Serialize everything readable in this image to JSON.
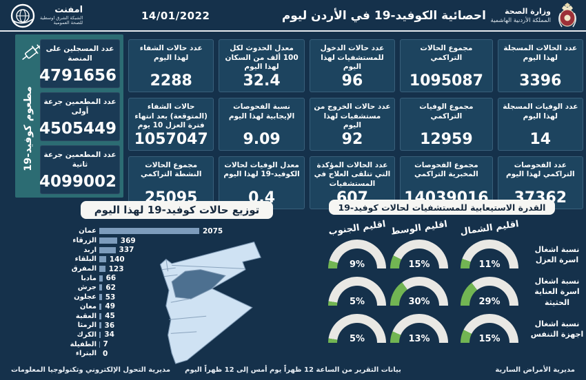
{
  "colors": {
    "bg": "#15314b",
    "card": "#1d445f",
    "vcard": "#1a3a55",
    "teal": "#2c6c73",
    "bar": "#7d9cbc",
    "gauge_track": "#e9e8e4",
    "gauge_fill": "#72b553",
    "map_fill": "#cfe2f3",
    "map_highlight": "#4d7090"
  },
  "header": {
    "title": "احصائية الكوفيد-19 في الأردن ليوم",
    "date": "14/01/2022",
    "moh_name": "وزارة الصحة",
    "moh_sub": "المملكة الأردنية الهاشمية",
    "emphnet_name": "امفنت",
    "emphnet_sub1": "الشبكة الشرق اوسطية",
    "emphnet_sub2": "للصحة العمومية"
  },
  "icons": {
    "syringe-icon": "syringe",
    "emphnet-logo": "globe",
    "moh-emblem": "royal crown crest"
  },
  "vaccine": {
    "strip_label": "مطعوم كوفيد-19",
    "cards": [
      {
        "label": "عدد المسجلين على المنصة",
        "value": "4791656"
      },
      {
        "label": "عدد المطعمين جرعة أولى",
        "value": "4505449"
      },
      {
        "label": "عدد المطعمين جرعة ثانية",
        "value": "4099002"
      }
    ]
  },
  "stats": {
    "cards": [
      {
        "label": "عدد الحالات المسجلة لهذا اليوم",
        "value": "3396"
      },
      {
        "label": "مجموع الحالات التراكمي",
        "value": "1095087"
      },
      {
        "label": "عدد حالات الدخول للمستشفيات لهذا اليوم",
        "value": "96"
      },
      {
        "label": "معدل الحدوث لكل 100 ألف من السكان لهذا اليوم",
        "value": "32.4"
      },
      {
        "label": "عدد حالات الشفاء لهذا اليوم",
        "value": "2288"
      },
      {
        "label": "عدد الوفيات المسجلة لهذا اليوم",
        "value": "14"
      },
      {
        "label": "مجموع الوفيات التراكمي",
        "value": "12959"
      },
      {
        "label": "عدد حالات الخروج من مستشفيات لهذا اليوم",
        "value": "92"
      },
      {
        "label": "نسبة الفحوصات الإيجابية لهذا اليوم",
        "value": "9.09"
      },
      {
        "label": "حالات الشفاء (المتوقعة) بعد انتهاء فترة العزل 10 يوم",
        "value": "1057047"
      },
      {
        "label": "عدد الفحوصات التراكمي لهذا اليوم",
        "value": "37362"
      },
      {
        "label": "مجموع الفحوصات المخبرية التراكمي",
        "value": "14039016"
      },
      {
        "label": "عدد الحالات المؤكدة التي تتلقى العلاج في المستشفيات",
        "value": "607"
      },
      {
        "label": "معدل الوفيات لحالات الكوفيد-19 لهذا اليوم",
        "value": "0.4"
      },
      {
        "label": "مجموع الحالات النشطة التراكمي",
        "value": "25095"
      }
    ]
  },
  "capacity": {
    "title": "القدرة الاستيعابية للمستشفيات لحالات كوفيد-19",
    "headers": [
      {
        "label": "اقليم الجنوب"
      },
      {
        "label": "اقليم الوسط"
      },
      {
        "label": "اقليم الشمال"
      }
    ],
    "rows": [
      {
        "label": "نسبة اشغال اسرة العزل",
        "south": 9,
        "center": 15,
        "north": 11
      },
      {
        "label": "نسبة اشغال اسرة العناية الحثيثة",
        "south": 5,
        "center": 30,
        "north": 29
      },
      {
        "label": "نسبة اشغال اجهزة التنفس",
        "south": 5,
        "center": 13,
        "north": 15
      }
    ]
  },
  "footer": {
    "right": "مديرية الأمراض السارية",
    "center": "بيانات التقرير من الساعة 12 ظهراً يوم أمس إلى 12 ظهراً اليوم",
    "left": "مديرية التحول الإلكتروني وتكنولوجيا المعلومات"
  },
  "chart_data": [
    {
      "type": "bar",
      "orientation": "horizontal",
      "title": "توزيع حالات كوفيد-19 لهذا اليوم",
      "categories": [
        "عمان",
        "الزرقاء",
        "اربد",
        "البلقاء",
        "المفرق",
        "مادبا",
        "جرش",
        "عجلون",
        "معان",
        "العقبة",
        "الرمثا",
        "الكرك",
        "الطفيلة",
        "البتراء"
      ],
      "values": [
        2075,
        369,
        337,
        140,
        123,
        66,
        62,
        53,
        49,
        45,
        36,
        34,
        7,
        0
      ],
      "xlim": [
        0,
        2075
      ],
      "grid": false,
      "bar_color": "#7d9cbc"
    },
    {
      "type": "table",
      "title": "القدرة الاستيعابية للمستشفيات لحالات كوفيد-19",
      "columns": [
        "المؤشر",
        "اقليم الشمال",
        "اقليم الوسط",
        "اقليم الجنوب"
      ],
      "rows": [
        [
          "نسبة اشغال اسرة العزل",
          "11%",
          "15%",
          "9%"
        ],
        [
          "نسبة اشغال اسرة العناية الحثيثة",
          "29%",
          "30%",
          "5%"
        ],
        [
          "نسبة اشغال اجهزة التنفس",
          "15%",
          "13%",
          "5%"
        ]
      ],
      "gauge_style": "semicircle, green fill on light track"
    }
  ]
}
